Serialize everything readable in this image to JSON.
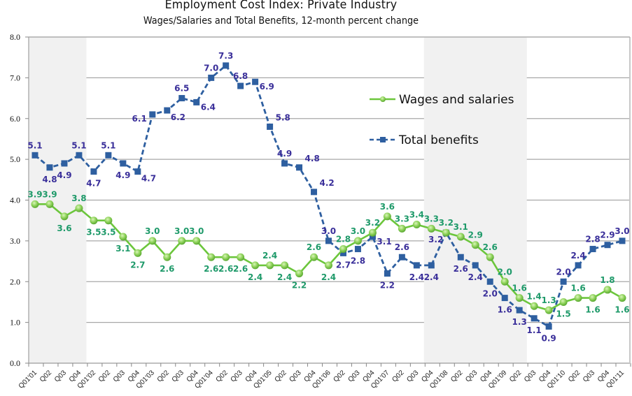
{
  "chart_data": {
    "type": "line",
    "title": "Employment Cost Index:  Private Industry",
    "subtitle": "Wages/Salaries and Total Benefits, 12-month percent change",
    "xlabel": "",
    "ylabel": "",
    "ylim": [
      0,
      8
    ],
    "yticks": [
      "0.0",
      "1.0",
      "2.0",
      "3.0",
      "4.0",
      "5.0",
      "6.0",
      "7.0",
      "8.0"
    ],
    "grid": true,
    "legend_position": "upper-right",
    "categories": [
      "Q01'01",
      "Q02",
      "Q03",
      "Q04",
      "Q01'02",
      "Q02",
      "Q03",
      "Q04",
      "Q01'03",
      "Q02",
      "Q03",
      "Q04",
      "Q01'04",
      "Q02",
      "Q03",
      "Q04",
      "Q01'05",
      "Q02",
      "Q03",
      "Q04",
      "Q01'06",
      "Q02",
      "Q03",
      "Q04",
      "Q01'07",
      "Q02",
      "Q03",
      "Q04",
      "Q01'08",
      "Q02",
      "Q03",
      "Q04",
      "Q01'09",
      "Q02",
      "Q03",
      "Q04",
      "Q01'10",
      "Q02",
      "Q03",
      "Q04",
      "Q01'11"
    ],
    "shaded_periods": [
      {
        "from": "Q01'01",
        "to": "Q04'01"
      },
      {
        "from": "Q04'07",
        "to": "Q02'09"
      }
    ],
    "series": [
      {
        "name": "Wages and salaries",
        "color": "#6cc63c",
        "label_color": "#1f9a6a",
        "line_style": "solid",
        "marker": "circle",
        "values": [
          3.9,
          3.9,
          3.6,
          3.8,
          3.5,
          3.5,
          3.1,
          2.7,
          3.0,
          2.6,
          3.0,
          3.0,
          2.6,
          2.6,
          2.6,
          2.4,
          2.4,
          2.4,
          2.2,
          2.6,
          2.4,
          2.8,
          3.0,
          3.2,
          3.6,
          3.3,
          3.4,
          3.3,
          3.2,
          3.1,
          2.9,
          2.6,
          2.0,
          1.6,
          1.4,
          1.3,
          1.5,
          1.6,
          1.6,
          1.8,
          1.6
        ],
        "labels": [
          "3.9",
          "3.9",
          "3.6",
          "3.8",
          "3.5",
          "3.5",
          "3.1",
          "2.7",
          "3.0",
          "2.6",
          "3.0",
          "3.0",
          "2.6",
          "2.6",
          "2.6",
          "2.4",
          "2.4",
          "2.4",
          "2.2",
          "2.6",
          "2.4",
          "2.8",
          "3.0",
          "3.2",
          "3.6",
          "3.3",
          "3.4",
          "3.3",
          "3.2",
          "3.1",
          "2.9",
          "2.6",
          "2.0",
          "1.6",
          "1.4",
          "1.3",
          "1.5",
          "1.6",
          "1.6",
          "1.8",
          "1.6"
        ]
      },
      {
        "name": "Total benefits",
        "color": "#2e5fa0",
        "label_color": "#3a2f9a",
        "line_style": "dashed",
        "marker": "square",
        "values": [
          5.1,
          4.8,
          4.9,
          5.1,
          4.7,
          5.1,
          4.9,
          4.7,
          6.1,
          6.2,
          6.5,
          6.4,
          7.0,
          7.3,
          6.8,
          6.9,
          5.8,
          4.9,
          4.8,
          4.2,
          3.0,
          2.7,
          2.8,
          3.1,
          2.2,
          2.6,
          2.4,
          2.4,
          3.2,
          2.6,
          2.4,
          2.0,
          1.6,
          1.3,
          1.1,
          0.9,
          2.0,
          2.4,
          2.8,
          2.9,
          3.0
        ],
        "labels": [
          "5.1",
          "4.8",
          "4.9",
          "5.1",
          "4.7",
          "5.1",
          "4.9",
          "4.7",
          "6.1",
          "6.2",
          "6.5",
          "6.4",
          "7.0",
          "7.3",
          "6.8",
          "6.9",
          "5.8",
          "4.9",
          "4.8",
          "4.2",
          "3.0",
          "2.7",
          "2.8",
          "3.1",
          "2.2",
          "2.6",
          "2.4",
          "2.4",
          "3.2",
          "2.6",
          "2.4",
          "2.0",
          "1.6",
          "1.3",
          "1.1",
          "0.9",
          "2.0",
          "2.4",
          "2.8",
          "2.9",
          "3.0"
        ]
      }
    ]
  }
}
